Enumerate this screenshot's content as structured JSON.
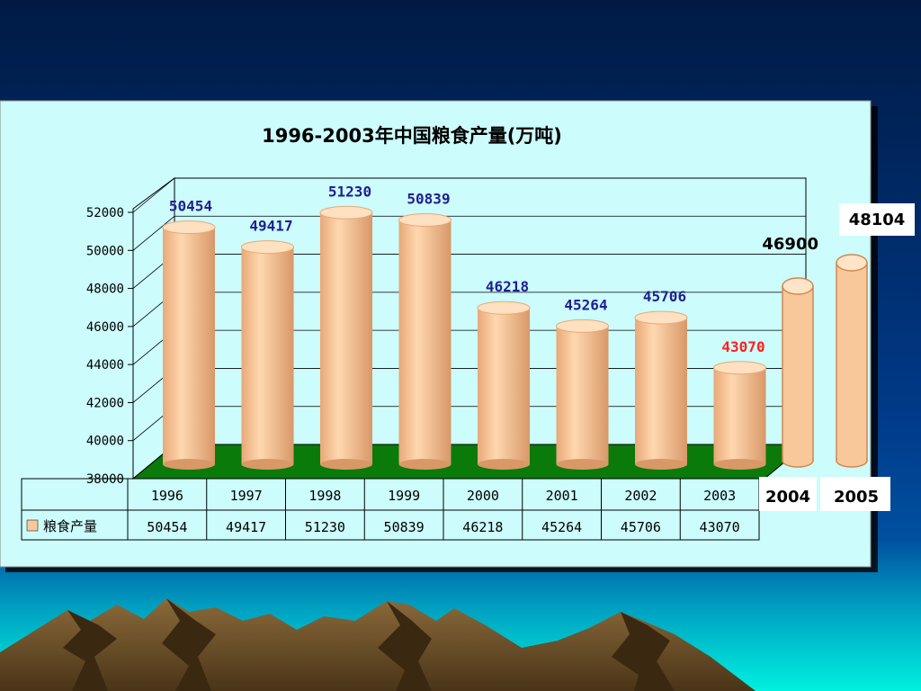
{
  "chart_data": {
    "type": "bar",
    "title": "1996-2003年中国粮食产量(万吨)",
    "categories": [
      "1996",
      "1997",
      "1998",
      "1999",
      "2000",
      "2001",
      "2002",
      "2003"
    ],
    "series": [
      {
        "name": "粮食产量",
        "values": [
          50454,
          49417,
          51230,
          50839,
          46218,
          45264,
          45706,
          43070
        ]
      }
    ],
    "ylim": [
      38000,
      52000
    ],
    "yticks": [
      "52000",
      "50000",
      "48000",
      "46000",
      "44000",
      "42000",
      "40000",
      "38000"
    ],
    "highlight": {
      "category": "2003",
      "color": "#ff2020"
    },
    "grid": true,
    "table": true,
    "bar_color": "#f8c89a",
    "floor_color": "#0a7a0a",
    "label_color": "#202090"
  },
  "extra_bars": [
    {
      "year": "2004",
      "value": 46900
    },
    {
      "year": "2005",
      "value": 48104
    }
  ]
}
